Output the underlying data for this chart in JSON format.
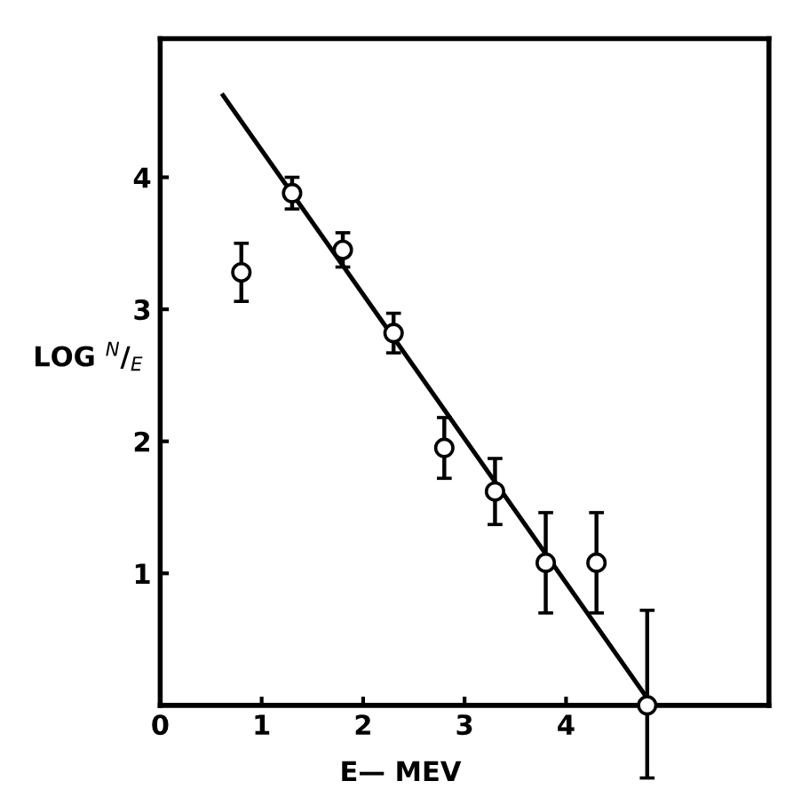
{
  "chart_data": {
    "type": "scatter",
    "xlabel": "E— MEV",
    "ylabel": "LOG $^{N}$/$_{E}$",
    "xlim": [
      0,
      6
    ],
    "ylim": [
      0,
      5.05
    ],
    "xticks": [
      0,
      1,
      2,
      3,
      4
    ],
    "yticks": [
      1,
      2,
      3,
      4
    ],
    "marker": "circle",
    "grid": false,
    "legend": false,
    "series": [
      {
        "color": "#000000",
        "x": [
          0.8,
          1.3,
          1.8,
          2.3,
          2.8,
          3.3,
          3.8,
          4.3,
          4.8
        ],
        "values": [
          3.28,
          3.88,
          3.45,
          2.82,
          1.95,
          1.62,
          1.08,
          1.08,
          0.0
        ],
        "errors": [
          0.22,
          0.12,
          0.13,
          0.15,
          0.23,
          0.25,
          0.38,
          0.38,
          [
            -0.55,
            0.72
          ]
        ]
      },
      {
        "type": "line",
        "marker": "none",
        "color": "#000000",
        "x": [
          0.62,
          4.85
        ],
        "values": [
          4.62,
          0.0
        ]
      }
    ]
  }
}
